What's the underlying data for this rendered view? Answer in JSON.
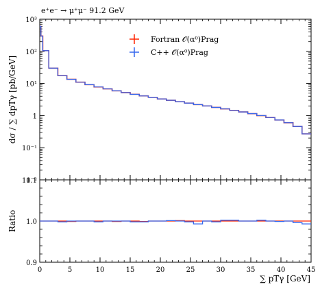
{
  "chart_data": [
    {
      "type": "line",
      "title": "e⁺e⁻ → μ⁺μ⁻ 91.2 GeV",
      "xlabel": "",
      "ylabel": "dσ / ∑ dpTγ [pb/GeV]",
      "yscale": "log",
      "xlim": [
        0,
        45
      ],
      "ylim": [
        0.01,
        1000
      ],
      "y_ticks": [
        0.01,
        0.1,
        1,
        10,
        100,
        1000
      ],
      "y_tick_labels": [
        "10⁻²",
        "10⁻¹",
        "1",
        "10¹",
        "10²",
        "10³"
      ],
      "legend": "top-center",
      "grid": false,
      "bin_edges": [
        0,
        0.2,
        0.5,
        1.5,
        3,
        4.5,
        6,
        7.5,
        9,
        10.5,
        12,
        13.5,
        15,
        16.5,
        18,
        19.5,
        21,
        22.5,
        24,
        25.5,
        27,
        28.5,
        30,
        31.5,
        33,
        34.5,
        36,
        37.5,
        39,
        40.5,
        42,
        43.5,
        45
      ],
      "series": [
        {
          "name": "Fortran 𝒪(α⁰)Prag",
          "color": "#ff2200",
          "values": [
            600,
            300,
            105,
            30,
            17.5,
            13.5,
            11,
            9.2,
            7.8,
            6.8,
            5.9,
            5.2,
            4.6,
            4.1,
            3.7,
            3.3,
            3.0,
            2.7,
            2.45,
            2.2,
            2.0,
            1.8,
            1.62,
            1.45,
            1.3,
            1.15,
            1.0,
            0.87,
            0.73,
            0.6,
            0.46,
            0.27
          ]
        },
        {
          "name": "C++ 𝒪(α⁰)Prag",
          "color": "#3366ee",
          "values": [
            600,
            300,
            105,
            30,
            17.5,
            13.5,
            11,
            9.2,
            7.8,
            6.8,
            5.9,
            5.2,
            4.6,
            4.1,
            3.7,
            3.3,
            3.0,
            2.7,
            2.45,
            2.2,
            2.0,
            1.8,
            1.62,
            1.45,
            1.3,
            1.15,
            1.0,
            0.87,
            0.73,
            0.6,
            0.46,
            0.27
          ]
        }
      ]
    },
    {
      "type": "line",
      "title": "",
      "xlabel": "∑ pTγ [GeV]",
      "ylabel": "Ratio",
      "xlim": [
        0,
        45
      ],
      "ylim": [
        0.9,
        1.1
      ],
      "x_ticks": [
        0,
        5,
        10,
        15,
        20,
        25,
        30,
        35,
        40,
        45
      ],
      "y_ticks": [
        0.9,
        1.0,
        1.1
      ],
      "y_tick_labels": [
        "0.9",
        "1.0",
        "1.1"
      ],
      "grid": false,
      "bin_edges": [
        0,
        1.5,
        3,
        4.5,
        6,
        7.5,
        9,
        10.5,
        12,
        13.5,
        15,
        16.5,
        18,
        19.5,
        21,
        22.5,
        24,
        25.5,
        27,
        28.5,
        30,
        31.5,
        33,
        34.5,
        36,
        37.5,
        39,
        40.5,
        42,
        43.5,
        45
      ],
      "series": [
        {
          "name": "Fortran 𝒪(α⁰)Prag",
          "color": "#ff2200",
          "values": [
            1.0,
            1.0,
            1.0,
            0.999,
            1.0,
            1.0,
            1.0,
            1.0,
            0.999,
            1.0,
            1.0,
            0.999,
            1.0,
            1.0,
            1.0,
            1.001,
            1.0,
            1.0,
            1.0,
            1.0,
            1.0,
            1.0,
            1.0,
            1.0,
            1.0,
            1.0,
            1.0,
            1.0,
            1.0,
            1.0
          ]
        },
        {
          "name": "C++ 𝒪(α⁰)Prag",
          "color": "#3366ee",
          "values": [
            1.0,
            1.0,
            0.998,
            1.0,
            1.0,
            1.0,
            0.998,
            1.0,
            1.0,
            1.0,
            0.998,
            0.998,
            1.0,
            1.0,
            1.001,
            1.0,
            0.998,
            0.993,
            1.0,
            0.998,
            1.002,
            1.002,
            1.0,
            1.0,
            1.002,
            1.0,
            0.999,
            1.0,
            0.996,
            0.993
          ]
        }
      ]
    }
  ]
}
